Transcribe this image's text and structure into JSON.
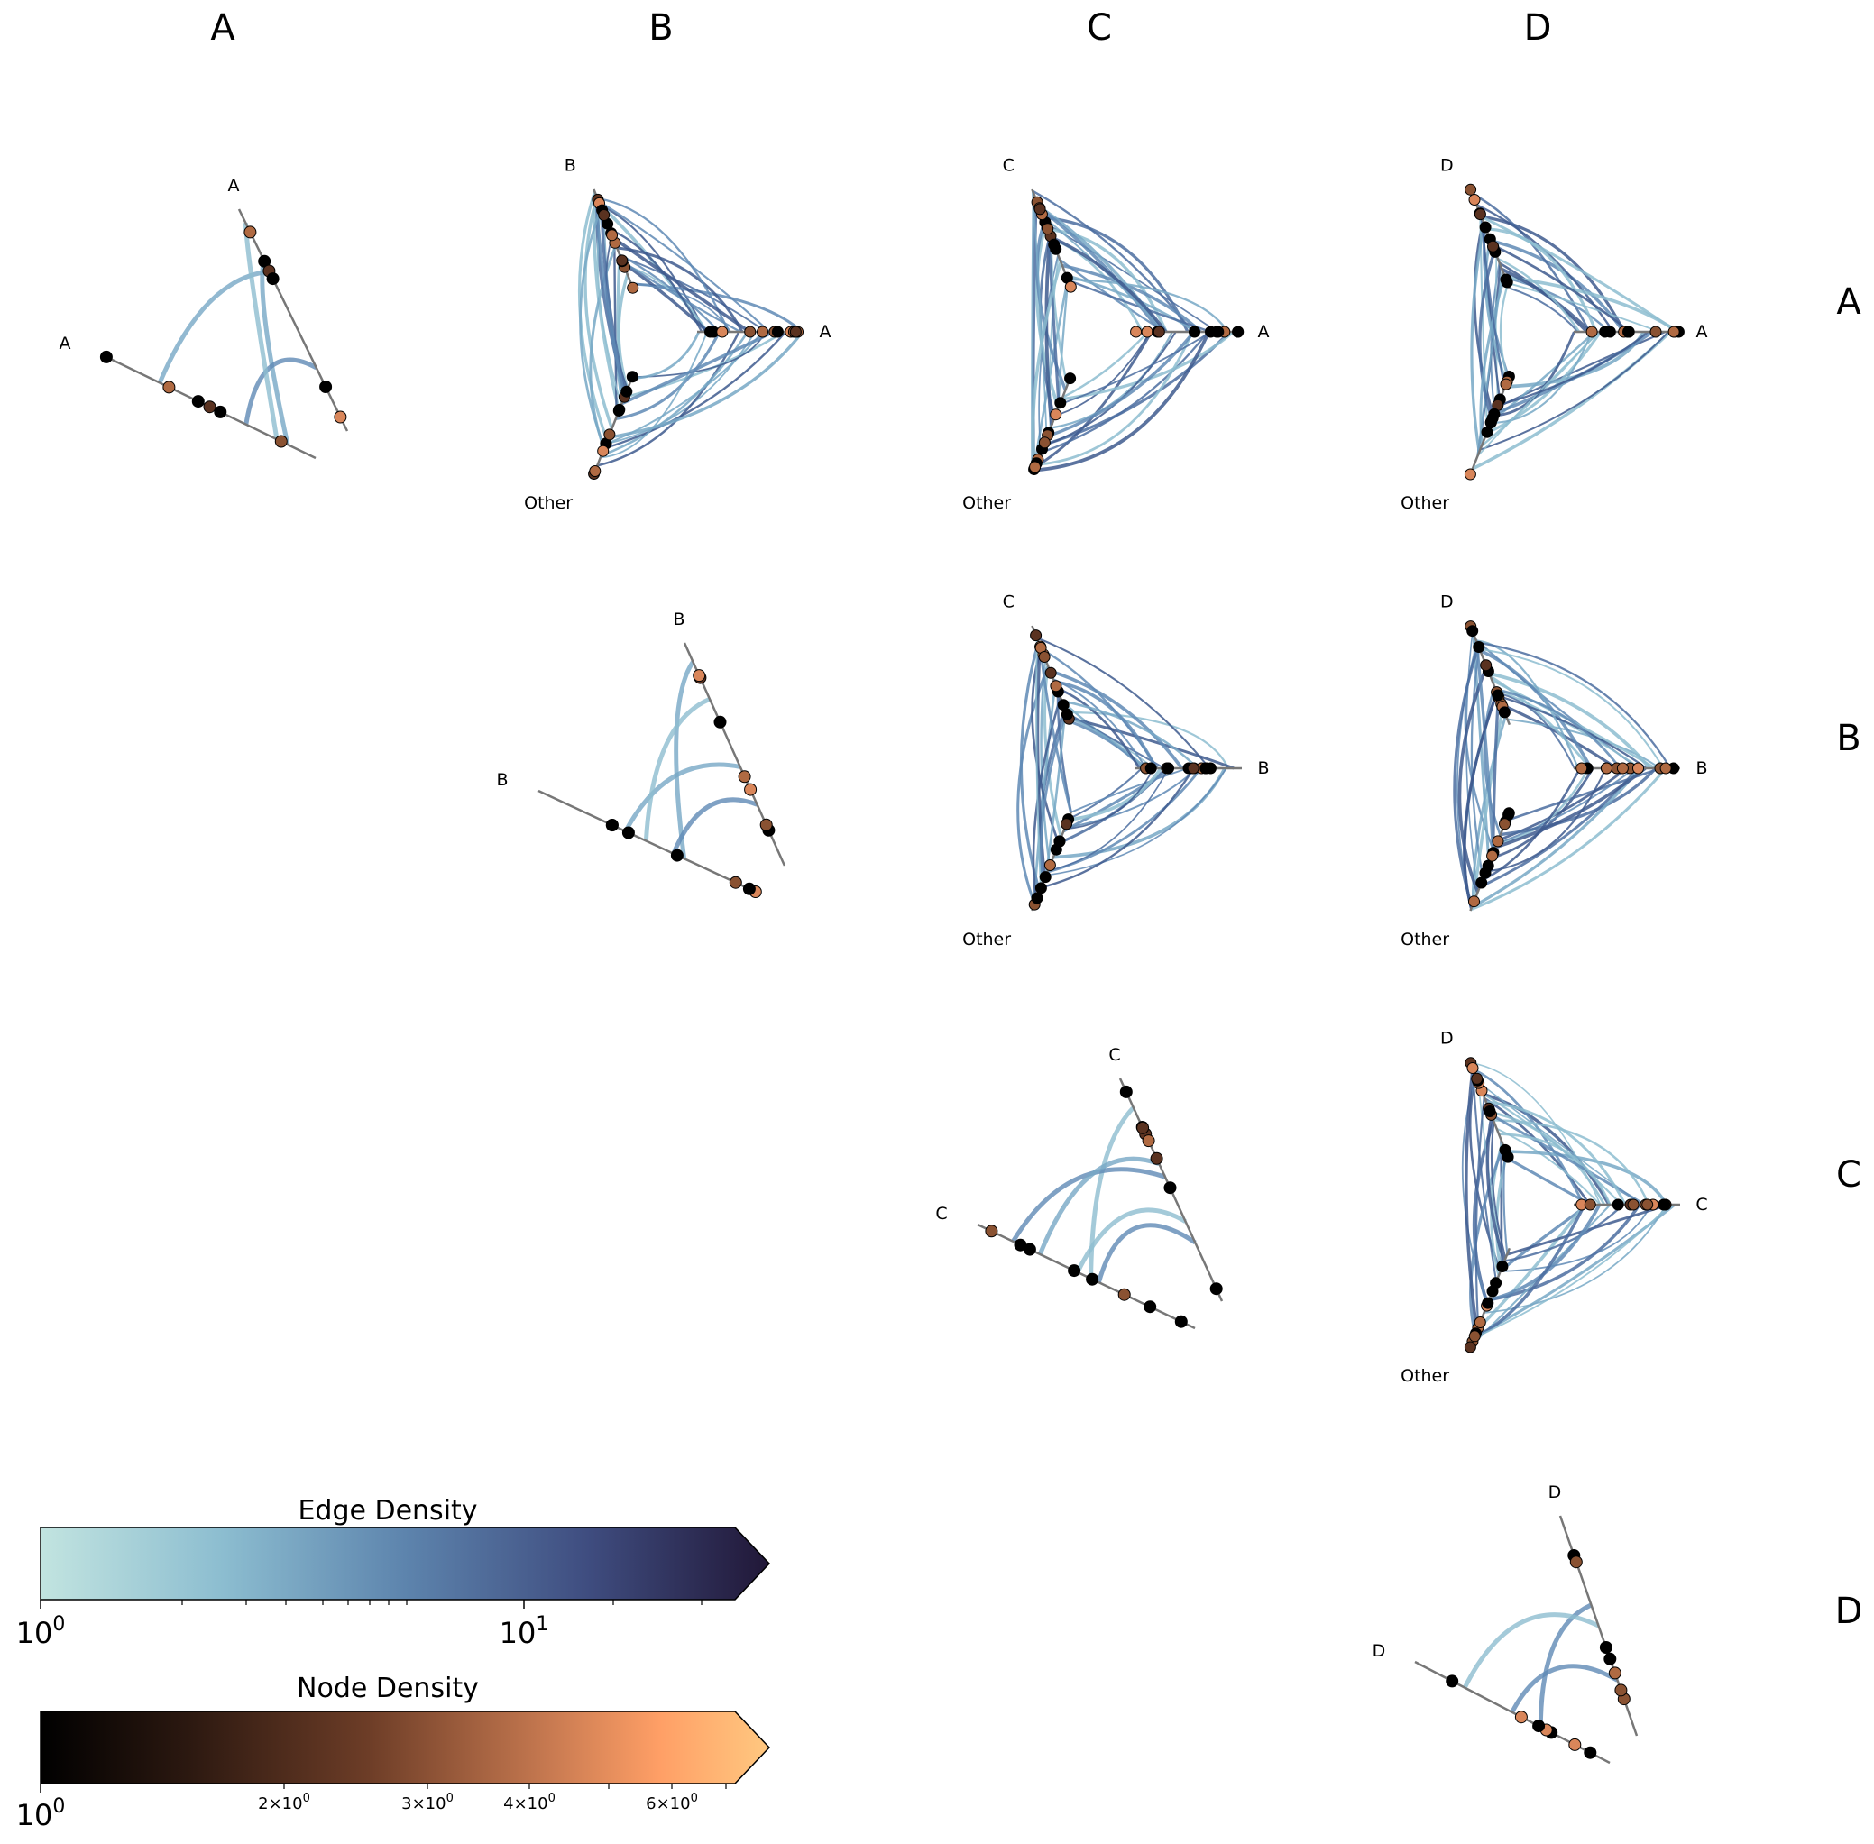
{
  "column_headers": [
    "A",
    "B",
    "C",
    "D"
  ],
  "row_headers": [
    "A",
    "B",
    "C",
    "D"
  ],
  "panels": [
    {
      "row": 0,
      "col": 0,
      "type": "triangle",
      "axis_labels": [
        "A",
        "A"
      ],
      "node_count": 12,
      "edge_count": 4
    },
    {
      "row": 0,
      "col": 1,
      "type": "hive",
      "axis_labels": [
        "B",
        "A",
        "Other"
      ],
      "node_count": 34,
      "edge_count": 40
    },
    {
      "row": 0,
      "col": 2,
      "type": "hive",
      "axis_labels": [
        "C",
        "A",
        "Other"
      ],
      "node_count": 34,
      "edge_count": 40
    },
    {
      "row": 0,
      "col": 3,
      "type": "hive",
      "axis_labels": [
        "D",
        "A",
        "Other"
      ],
      "node_count": 34,
      "edge_count": 40
    },
    {
      "row": 1,
      "col": 1,
      "type": "triangle",
      "axis_labels": [
        "B",
        "B"
      ],
      "node_count": 14,
      "edge_count": 4
    },
    {
      "row": 1,
      "col": 2,
      "type": "hive",
      "axis_labels": [
        "C",
        "B",
        "Other"
      ],
      "node_count": 34,
      "edge_count": 40
    },
    {
      "row": 1,
      "col": 3,
      "type": "hive",
      "axis_labels": [
        "D",
        "B",
        "Other"
      ],
      "node_count": 34,
      "edge_count": 40
    },
    {
      "row": 2,
      "col": 2,
      "type": "triangle",
      "axis_labels": [
        "C",
        "C"
      ],
      "node_count": 16,
      "edge_count": 5
    },
    {
      "row": 2,
      "col": 3,
      "type": "hive",
      "axis_labels": [
        "D",
        "C",
        "Other"
      ],
      "node_count": 34,
      "edge_count": 40
    },
    {
      "row": 3,
      "col": 3,
      "type": "triangle",
      "axis_labels": [
        "D",
        "D"
      ],
      "node_count": 14,
      "edge_count": 3
    }
  ],
  "colorbars": {
    "edge": {
      "title": "Edge Density",
      "scale": "log",
      "range": [
        1,
        30
      ],
      "colors": [
        "#c2e4e0",
        "#8cbdd0",
        "#5d84ad",
        "#3f4d80",
        "#211737"
      ],
      "tick_labels": [
        "10^0",
        "10^1"
      ]
    },
    "node": {
      "title": "Node Density",
      "scale": "log",
      "range": [
        1,
        7
      ],
      "colors": [
        "#000000",
        "#2b1810",
        "#6d3d27",
        "#c87a51",
        "#ff9f66",
        "#ffc880"
      ],
      "tick_labels": [
        "10^0",
        "2×10^0",
        "3×10^0",
        "4×10^0",
        "6×10^0"
      ]
    }
  }
}
